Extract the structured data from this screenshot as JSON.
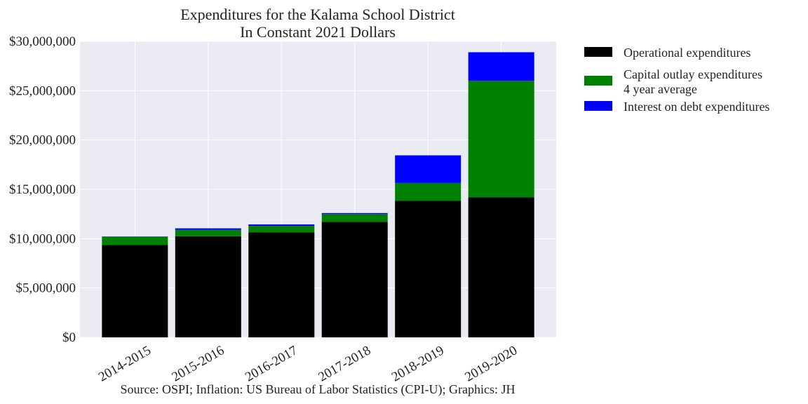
{
  "chart_data": {
    "type": "bar",
    "stacked": true,
    "title": "Expenditures for the Kalama School District",
    "subtitle": "In Constant 2021 Dollars",
    "xlabel": "",
    "ylabel": "",
    "categories": [
      "2014-2015",
      "2015-2016",
      "2016-2017",
      "2017-2018",
      "2018-2019",
      "2019-2020"
    ],
    "ylim": [
      0,
      30000000
    ],
    "yticks": [
      0,
      5000000,
      10000000,
      15000000,
      20000000,
      25000000,
      30000000
    ],
    "ytick_labels": [
      "$0",
      "$5,000,000",
      "$10,000,000",
      "$15,000,000",
      "$20,000,000",
      "$25,000,000",
      "$30,000,000"
    ],
    "grid": true,
    "legend_position": "outside-right",
    "series": [
      {
        "name": "Operational expenditures",
        "color": "#000000",
        "values": [
          9350000,
          10250000,
          10650000,
          11700000,
          13850000,
          14200000
        ]
      },
      {
        "name": "Capital outlay expenditures\n4 year average",
        "color": "#008000",
        "values": [
          850000,
          650000,
          650000,
          800000,
          1800000,
          11800000
        ]
      },
      {
        "name": "Interest on debt expenditures",
        "color": "#0000ff",
        "values": [
          20000,
          150000,
          150000,
          100000,
          2800000,
          2900000
        ]
      }
    ],
    "annotations": [
      "Source: OSPI; Inflation: US Bureau of Labor Statistics (CPI-U); Graphics: JH"
    ]
  }
}
